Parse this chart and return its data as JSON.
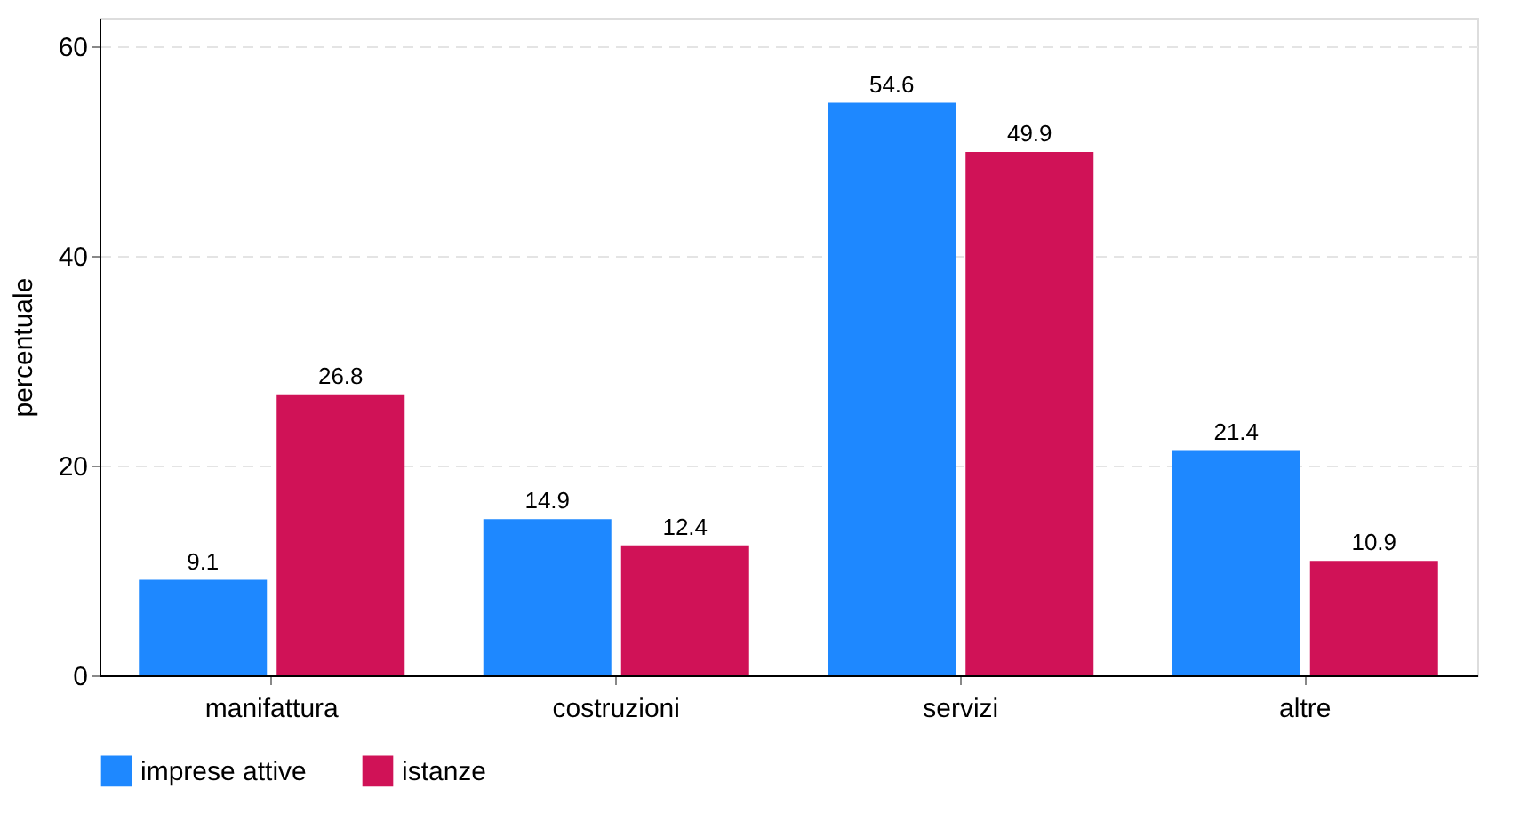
{
  "chart_data": {
    "type": "bar",
    "ylabel": "percentuale",
    "categories": [
      "manifattura",
      "costruzioni",
      "servizi",
      "altre"
    ],
    "series": [
      {
        "name": "imprese attive",
        "color": "#1e88ff",
        "values": [
          9.1,
          14.9,
          54.6,
          21.4
        ]
      },
      {
        "name": "istanze",
        "color": "#d01257",
        "values": [
          26.8,
          12.4,
          49.9,
          10.9
        ]
      }
    ],
    "ylim": [
      0,
      62.7
    ],
    "yticks": [
      0,
      20,
      40,
      60
    ],
    "grid": "y",
    "legend": "bottom",
    "data_labels": true
  }
}
